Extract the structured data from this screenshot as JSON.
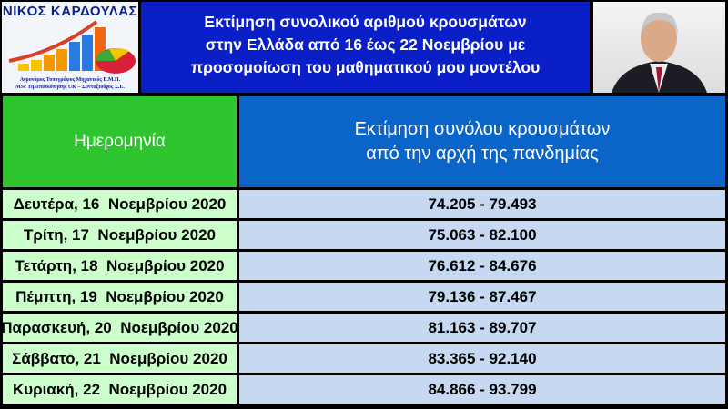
{
  "logo": {
    "name": "ΝΙΚΟΣ ΚΑΡΔΟΥΛΑΣ",
    "line1": "Αγρονόμος Τοπογράφος Μηχανικός Ε.Μ.Π.",
    "line2": "MSc Τηλεπισκόπησης UK – Συνταξιούχος Σ.Ε."
  },
  "title": {
    "line1": "Εκτίμηση συνολικού αριθμού κρουσμάτων",
    "line2": "στην Ελλάδα από 16 έως 22 Νοεμβρίου με",
    "line3": "προσομοίωση του μαθηματικού μου μοντέλου"
  },
  "table": {
    "headers": {
      "date": "Ημερομηνία",
      "estimate_line1": "Εκτίμηση συνόλου κρουσμάτων",
      "estimate_line2": "από την αρχή της πανδημίας"
    },
    "rows": [
      {
        "date": "Δευτέρα, 16  Νοεμβρίου 2020",
        "estimate": "74.205 - 79.493"
      },
      {
        "date": "Τρίτη, 17  Νοεμβρίου 2020",
        "estimate": "75.063 - 82.100"
      },
      {
        "date": "Τετάρτη, 18  Νοεμβρίου 2020",
        "estimate": "76.612 - 84.676"
      },
      {
        "date": "Πέμπτη, 19  Νοεμβρίου 2020",
        "estimate": "79.136 - 87.467"
      },
      {
        "date": "Παρασκευή, 20  Νοεμβρίου 2020",
        "estimate": "81.163 - 89.707"
      },
      {
        "date": "Σάββατο, 21  Νοεμβρίου 2020",
        "estimate": "83.365 - 92.140"
      },
      {
        "date": "Κυριακή, 22  Νοεμβρίου 2020",
        "estimate": "84.866 - 93.799"
      }
    ]
  },
  "colors": {
    "title_bg": "#0a1fc8",
    "date_header": "#2ec52e",
    "estimate_header": "#0b64c8",
    "date_cell": "#ccffcc",
    "estimate_cell": "#c6d9f1"
  }
}
